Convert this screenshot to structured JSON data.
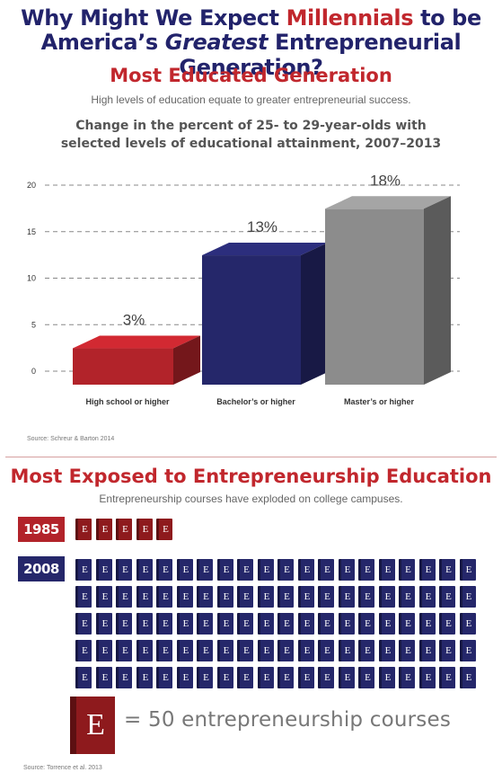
{
  "header": {
    "line1_pre": "Why Might We Expect ",
    "line1_red": "Millennials",
    "line1_post": " to be",
    "line2_pre": "America’s ",
    "line2_italic": "Greatest",
    "line2_post": " Entrepreneurial Generation?"
  },
  "section1": {
    "title": "Most Educated Generation",
    "subtitle": "High levels of education equate to greater entrepreneurial success.",
    "chart_title_line1": "Change in the percent of 25- to 29-year-olds with",
    "chart_title_line2": "selected levels of educational attainment, 2007–2013",
    "source": "Source: Schreur & Barton 2014"
  },
  "chart_data": {
    "type": "bar",
    "title": "Change in the percent of 25- to 29-year-olds with selected levels of educational attainment, 2007–2013",
    "categories": [
      "High school or higher",
      "Bachelor’s or higher",
      "Master’s or higher"
    ],
    "values": [
      3,
      13,
      18
    ],
    "data_labels": [
      "3%",
      "13%",
      "18%"
    ],
    "colors": [
      "#b2232a",
      "#25276a",
      "#8c8c8c"
    ],
    "yticks": [
      "0",
      "5",
      "10",
      "15",
      "20"
    ],
    "ylim": [
      0,
      20
    ],
    "grid": true
  },
  "section2": {
    "title": "Most Exposed to Entrepreneurship Education",
    "subtitle": "Entrepreneurship courses have exploded on college campuses.",
    "rows": [
      {
        "year": "1985",
        "icon_count": 5,
        "color": "#8e1a1d"
      },
      {
        "year": "2008",
        "icon_count": 100,
        "color": "#25276a"
      }
    ],
    "icon_letter": "E",
    "legend_letter": "E",
    "legend_text": "= 50 entrepreneurship courses",
    "source": "Source: Torrence et al. 2013"
  }
}
